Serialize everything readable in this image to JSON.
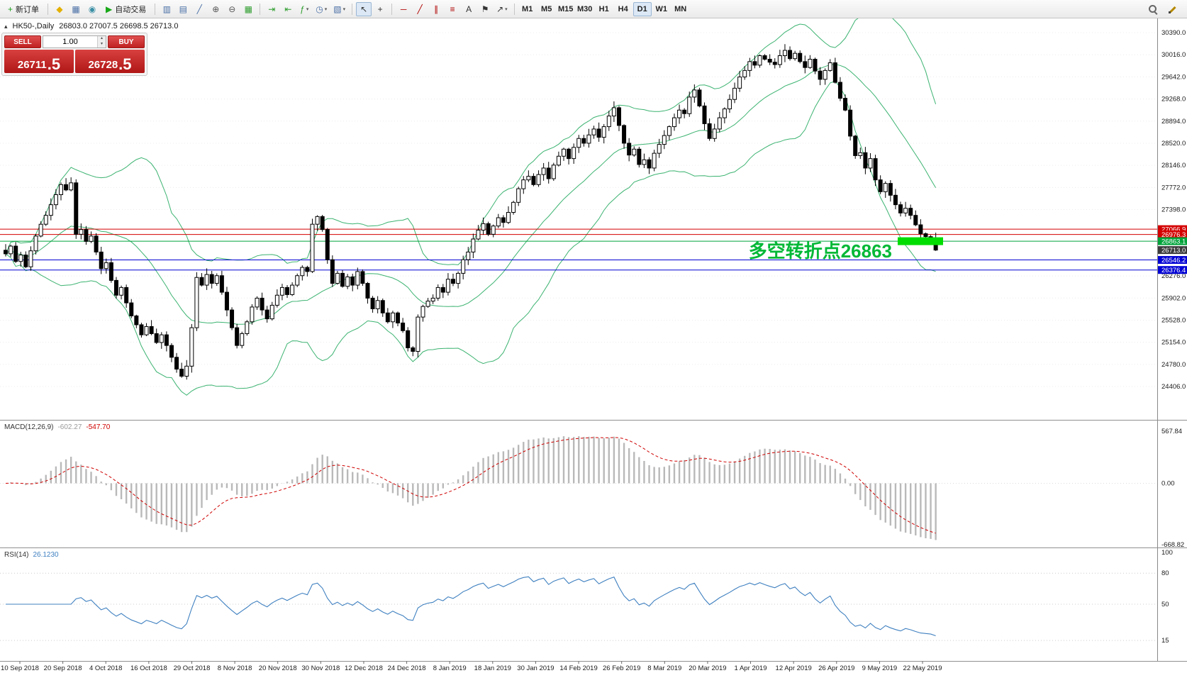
{
  "toolbar": {
    "groups": [
      {
        "items": [
          {
            "name": "new-order-button",
            "kind": "button",
            "glyph": "+",
            "color": "#1fa11f",
            "icon_name": "plus-icon",
            "label": "新订单"
          }
        ]
      },
      {
        "items": [
          {
            "name": "metaeditor-icon",
            "kind": "icon",
            "glyph": "◆",
            "color": "#e3b000"
          },
          {
            "name": "terminal-icon",
            "kind": "icon",
            "glyph": "▦",
            "color": "#4a6fa5"
          },
          {
            "name": "strategy-tester-icon",
            "kind": "icon",
            "glyph": "◉",
            "color": "#3a8fa5"
          },
          {
            "name": "autotrading-button",
            "kind": "button",
            "glyph": "▶",
            "color": "#18a818",
            "icon_name": "autotrading-play-icon",
            "label": "自动交易"
          }
        ]
      },
      {
        "items": [
          {
            "name": "bar-chart-icon",
            "kind": "icon",
            "glyph": "▥",
            "color": "#4a6fa5"
          },
          {
            "name": "candlestick-chart-icon",
            "kind": "icon",
            "glyph": "▤",
            "color": "#4a6fa5"
          },
          {
            "name": "line-chart-icon",
            "kind": "icon",
            "glyph": "╱",
            "color": "#4a6fa5"
          },
          {
            "name": "zoom-in-icon",
            "kind": "icon",
            "glyph": "⊕",
            "color": "#555555"
          },
          {
            "name": "zoom-out-icon",
            "kind": "icon",
            "glyph": "⊖",
            "color": "#555555"
          },
          {
            "name": "tile-windows-icon",
            "kind": "icon",
            "glyph": "▦",
            "color": "#2f9e2f"
          }
        ]
      },
      {
        "items": [
          {
            "name": "auto-scroll-icon",
            "kind": "icon",
            "glyph": "⇥",
            "color": "#2f9e2f"
          },
          {
            "name": "chart-shift-icon",
            "kind": "icon",
            "glyph": "⇤",
            "color": "#2f9e2f"
          },
          {
            "name": "indicators-icon",
            "kind": "icon",
            "glyph": "ƒ",
            "color": "#2f9e2f",
            "caret": true
          },
          {
            "name": "periods-icon",
            "kind": "icon",
            "glyph": "◷",
            "color": "#4a6fa5",
            "caret": true
          },
          {
            "name": "templates-icon",
            "kind": "icon",
            "glyph": "▧",
            "color": "#4a6fa5",
            "caret": true
          }
        ]
      },
      {
        "items": [
          {
            "name": "cursor-icon",
            "kind": "icon",
            "glyph": "↖",
            "color": "#333333",
            "active": true
          },
          {
            "name": "crosshair-icon",
            "kind": "icon",
            "glyph": "+",
            "color": "#333333"
          }
        ]
      },
      {
        "items": [
          {
            "name": "horizontal-line-icon",
            "kind": "icon",
            "glyph": "─",
            "color": "#b00000"
          },
          {
            "name": "trendline-icon",
            "kind": "icon",
            "glyph": "╱",
            "color": "#b00000"
          },
          {
            "name": "equidistant-channel-icon",
            "kind": "icon",
            "glyph": "∥",
            "color": "#b00000"
          },
          {
            "name": "fibonacci-icon",
            "kind": "icon",
            "glyph": "≡",
            "color": "#b00000"
          },
          {
            "name": "text-icon",
            "kind": "icon",
            "glyph": "A",
            "color": "#333333"
          },
          {
            "name": "text-label-icon",
            "kind": "icon",
            "glyph": "⚑",
            "color": "#333333"
          },
          {
            "name": "arrows-icon",
            "kind": "icon",
            "glyph": "↗",
            "color": "#333333",
            "caret": true
          }
        ]
      },
      {
        "items": [
          {
            "name": "timeframe-m1-button",
            "kind": "tf",
            "label": "M1"
          },
          {
            "name": "timeframe-m5-button",
            "kind": "tf",
            "label": "M5"
          },
          {
            "name": "timeframe-m15-button",
            "kind": "tf",
            "label": "M15"
          },
          {
            "name": "timeframe-m30-button",
            "kind": "tf",
            "label": "M30"
          },
          {
            "name": "timeframe-h1-button",
            "kind": "tf",
            "label": "H1"
          },
          {
            "name": "timeframe-h4-button",
            "kind": "tf",
            "label": "H4"
          },
          {
            "name": "timeframe-d1-button",
            "kind": "tf",
            "label": "D1",
            "active": true
          },
          {
            "name": "timeframe-w1-button",
            "kind": "tf",
            "label": "W1"
          },
          {
            "name": "timeframe-mn-button",
            "kind": "tf",
            "label": "MN"
          }
        ]
      }
    ],
    "right_items": [
      {
        "name": "search-icon",
        "kind": "icon",
        "css": "ico-magnifier"
      },
      {
        "name": "edit-icon",
        "kind": "icon",
        "css": "ico-pencil"
      }
    ]
  },
  "chart": {
    "symbol_label": "HK50-,Daily",
    "ohlc_text": "26803.0 27007.5 26698.5 26713.0",
    "corner_icon_glyph": "▴"
  },
  "one_click": {
    "sell_label": "SELL",
    "buy_label": "BUY",
    "volume": "1.00",
    "sell_price_main": "26711",
    "sell_price_pips": ".5",
    "buy_price_main": "26728",
    "buy_price_pips": ".5"
  },
  "annotation": {
    "text": "多空转折点26863",
    "color": "#00b836",
    "highlight_color": "#00dd00",
    "highlight_price": 26863.1
  },
  "levels": [
    {
      "price": 27066.9,
      "label": "27066.9",
      "line_color": "#d40000",
      "box_color": "#d40000",
      "line": true
    },
    {
      "price": 26976.3,
      "label": "26976.3",
      "line_color": "#d40000",
      "box_color": "#d40000",
      "line": true
    },
    {
      "price": 26863.1,
      "label": "26863.1",
      "line_color": "#00a33a",
      "box_color": "#00a33a",
      "line": true
    },
    {
      "price": 26713.0,
      "label": "26713.0",
      "line_color": "#3c3c3c",
      "box_color": "#3c3c3c",
      "line": false
    },
    {
      "price": 26546.2,
      "label": "26546.2",
      "line_color": "#0000d4",
      "box_color": "#0000d4",
      "line": true
    },
    {
      "price": 26376.4,
      "label": "26376.4",
      "line_color": "#0000d4",
      "box_color": "#0000d4",
      "line": true
    }
  ],
  "price_axis": {
    "max": 30390.0,
    "min": 24406.0,
    "step": 374.0,
    "ticks": [
      "30390.0",
      "30016.0",
      "29642.0",
      "29268.0",
      "28894.0",
      "28520.0",
      "28146.0",
      "27772.0",
      "27398.0",
      "26276.0",
      "25902.0",
      "25528.0",
      "25154.0",
      "24780.0",
      "24406.0"
    ]
  },
  "macd_panel": {
    "label": "MACD(12,26,9)",
    "value_main": "-602.27",
    "value_signal": "-547.70",
    "axis_labels": [
      "567.84",
      "0.00",
      "-668.82"
    ],
    "histogram_color": "#b9b9b9",
    "signal_color": "#cf0000"
  },
  "rsi_panel": {
    "label": "RSI(14)",
    "value": "26.1230",
    "axis_labels": [
      "100",
      "80",
      "50",
      "15"
    ],
    "levels": [
      80,
      50,
      15
    ],
    "line_color": "#3f80c0"
  },
  "time_axis": [
    "10 Sep 2018",
    "20 Sep 2018",
    "4 Oct 2018",
    "16 Oct 2018",
    "29 Oct 2018",
    "8 Nov 2018",
    "20 Nov 2018",
    "30 Nov 2018",
    "12 Dec 2018",
    "24 Dec 2018",
    "8 Jan 2019",
    "18 Jan 2019",
    "30 Jan 2019",
    "14 Feb 2019",
    "26 Feb 2019",
    "8 Mar 2019",
    "20 Mar 2019",
    "1 Apr 2019",
    "12 Apr 2019",
    "26 Apr 2019",
    "9 May 2019",
    "22 May 2019"
  ],
  "chart_data": {
    "type": "candlestick",
    "symbol": "HK50",
    "timeframe": "Daily",
    "ylim": [
      24406.0,
      30390.0
    ],
    "closes": [
      26650,
      26780,
      26520,
      26630,
      26430,
      26700,
      26950,
      27150,
      27300,
      27480,
      27650,
      27820,
      27730,
      27850,
      26980,
      27060,
      26860,
      26950,
      26680,
      26400,
      26500,
      26200,
      25950,
      26080,
      25820,
      25600,
      25450,
      25280,
      25420,
      25300,
      25150,
      25280,
      25100,
      24900,
      24700,
      24580,
      24750,
      25400,
      26250,
      26120,
      26300,
      26150,
      26280,
      26000,
      25700,
      25400,
      25100,
      25300,
      25500,
      25750,
      25900,
      25700,
      25550,
      25780,
      25950,
      26080,
      25960,
      26120,
      26280,
      26420,
      26350,
      27150,
      27280,
      27060,
      26550,
      26150,
      26320,
      26100,
      26260,
      26120,
      26350,
      26150,
      25900,
      25720,
      25860,
      25650,
      25500,
      25650,
      25480,
      25350,
      25060,
      25000,
      25580,
      25760,
      25850,
      25900,
      26080,
      26000,
      26220,
      26150,
      26320,
      26550,
      26680,
      26900,
      27050,
      27160,
      26980,
      27120,
      27260,
      27180,
      27350,
      27520,
      27750,
      27900,
      27960,
      27820,
      27990,
      28100,
      27920,
      28150,
      28300,
      28420,
      28260,
      28450,
      28600,
      28520,
      28660,
      28760,
      28620,
      28800,
      28980,
      29120,
      28820,
      28520,
      28320,
      28420,
      28160,
      28240,
      28100,
      28350,
      28500,
      28650,
      28800,
      28950,
      29080,
      29020,
      29300,
      29420,
      29150,
      28850,
      28600,
      28760,
      28950,
      29100,
      29260,
      29450,
      29640,
      29750,
      29900,
      29840,
      30000,
      29940,
      29890,
      29850,
      30000,
      30090,
      29950,
      30040,
      29900,
      29800,
      29940,
      29740,
      29600,
      29750,
      29880,
      29550,
      29280,
      29080,
      28640,
      28310,
      28360,
      28100,
      28260,
      27900,
      27700,
      27840,
      27640,
      27480,
      27340,
      27420,
      27300,
      27140,
      26990,
      26940,
      26880,
      26713
    ],
    "last_candle": {
      "open": 26803.0,
      "high": 27007.5,
      "low": 26698.5,
      "close": 26713.0
    },
    "overlays": {
      "bollinger": {
        "period": 20,
        "deviation": 2,
        "color": "#3CB371"
      }
    },
    "panels": {
      "macd": {
        "fast": 12,
        "slow": 26,
        "signal": 9
      },
      "rsi": {
        "period": 14
      }
    }
  }
}
